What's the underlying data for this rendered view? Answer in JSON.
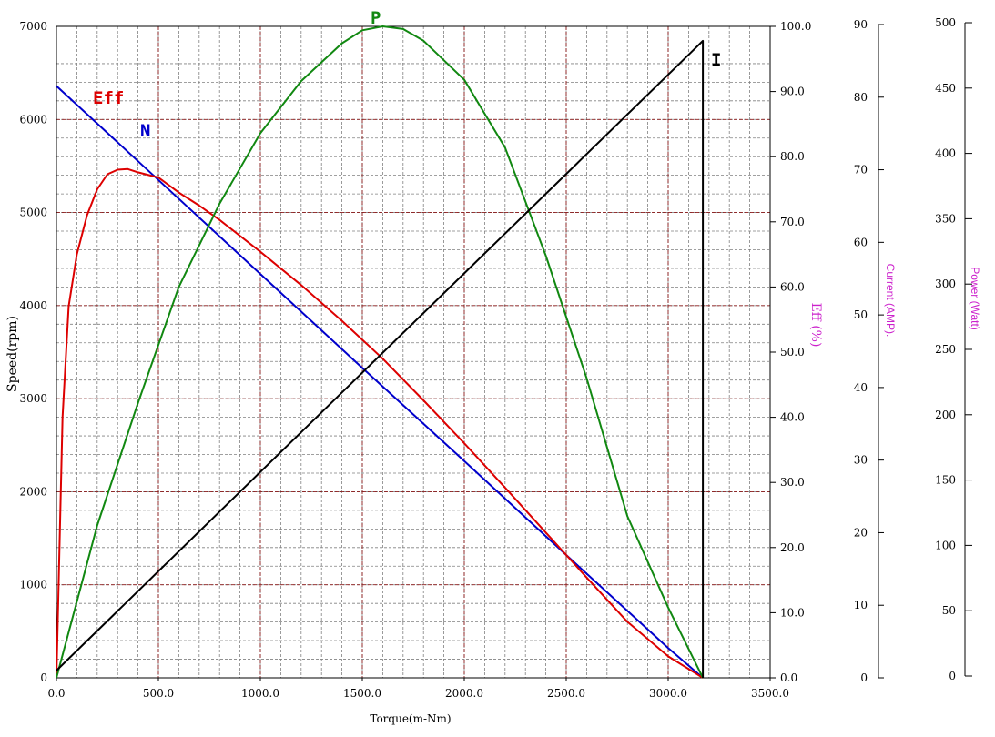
{
  "chart_data": {
    "type": "line",
    "x": {
      "label": "Torque(m-Nm)",
      "range": [
        0,
        3500
      ],
      "ticks": [
        "0.0",
        "500.0",
        "1000.0",
        "1500.0",
        "2000.0",
        "2500.0",
        "3000.0",
        "3500.0"
      ]
    },
    "axes": {
      "speed": {
        "label": "Speed(rpm)",
        "range": [
          0,
          7000
        ],
        "ticks": [
          "0",
          "1000",
          "2000",
          "3000",
          "4000",
          "5000",
          "6000",
          "7000"
        ]
      },
      "eff": {
        "label": "Eff (%)",
        "range": [
          0,
          100
        ],
        "ticks": [
          "0.0",
          "10.0",
          "20.0",
          "30.0",
          "40.0",
          "50.0",
          "60.0",
          "70.0",
          "80.0",
          "90.0",
          "100.0"
        ]
      },
      "current": {
        "label": "Current (AMP).",
        "range": [
          0,
          90
        ],
        "ticks": [
          "0",
          "10",
          "20",
          "30",
          "40",
          "50",
          "60",
          "70",
          "80",
          "90"
        ]
      },
      "power": {
        "label": "Power (Watt)",
        "range": [
          0,
          500
        ],
        "ticks": [
          "0",
          "50",
          "100",
          "150",
          "200",
          "250",
          "300",
          "350",
          "400",
          "450",
          "500"
        ]
      }
    },
    "grid": true,
    "series": [
      {
        "name": "N",
        "axis": "speed",
        "color": "#0000cc",
        "points": [
          [
            0,
            6360
          ],
          [
            500,
            5350
          ],
          [
            1000,
            4340
          ],
          [
            1500,
            3330
          ],
          [
            2000,
            2330
          ],
          [
            2500,
            1320
          ],
          [
            3000,
            320
          ],
          [
            3170,
            0
          ]
        ]
      },
      {
        "name": "Eff",
        "axis": "eff",
        "color": "#dd0000",
        "points": [
          [
            0,
            0
          ],
          [
            30,
            40
          ],
          [
            60,
            57
          ],
          [
            100,
            65
          ],
          [
            150,
            71
          ],
          [
            200,
            75
          ],
          [
            250,
            77.3
          ],
          [
            300,
            78
          ],
          [
            350,
            78.1
          ],
          [
            400,
            77.6
          ],
          [
            500,
            76.8
          ],
          [
            600,
            74.5
          ],
          [
            700,
            72.5
          ],
          [
            800,
            70.3
          ],
          [
            1000,
            65.4
          ],
          [
            1200,
            60.3
          ],
          [
            1400,
            54.8
          ],
          [
            1600,
            49.0
          ],
          [
            1800,
            42.6
          ],
          [
            2000,
            36.0
          ],
          [
            2200,
            29.2
          ],
          [
            2400,
            22.3
          ],
          [
            2600,
            15.4
          ],
          [
            2800,
            8.6
          ],
          [
            3000,
            3.3
          ],
          [
            3170,
            0
          ]
        ]
      },
      {
        "name": "P",
        "axis": "power",
        "color": "#118811",
        "points": [
          [
            0,
            0
          ],
          [
            200,
            117
          ],
          [
            400,
            211
          ],
          [
            600,
            300
          ],
          [
            800,
            364
          ],
          [
            1000,
            418
          ],
          [
            1200,
            458
          ],
          [
            1400,
            487
          ],
          [
            1500,
            497
          ],
          [
            1600,
            500
          ],
          [
            1700,
            498
          ],
          [
            1800,
            489
          ],
          [
            2000,
            459
          ],
          [
            2200,
            407
          ],
          [
            2400,
            324
          ],
          [
            2600,
            230
          ],
          [
            2800,
            124
          ],
          [
            3000,
            54
          ],
          [
            3170,
            0
          ]
        ]
      },
      {
        "name": "I",
        "axis": "current",
        "color": "#000000",
        "points": [
          [
            0,
            1
          ],
          [
            3170,
            88
          ],
          [
            3170,
            0
          ]
        ]
      }
    ]
  }
}
